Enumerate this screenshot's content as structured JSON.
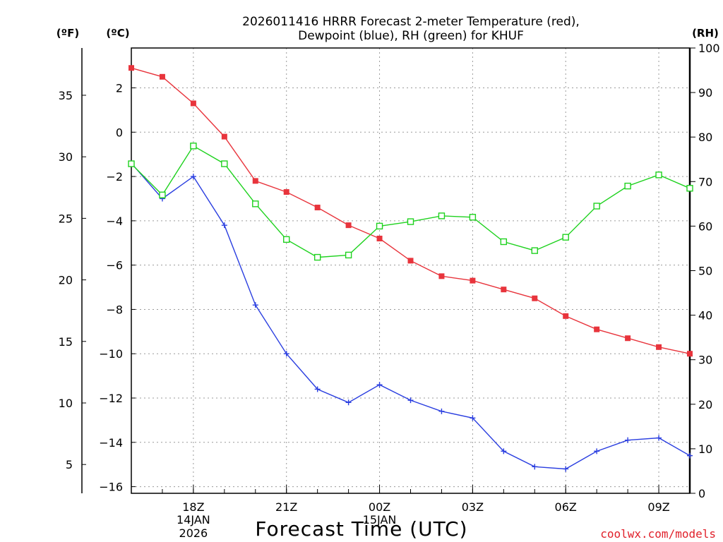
{
  "chart_data": {
    "type": "line",
    "title_line1": "2026011416 HRRR Forecast 2-meter Temperature (red),",
    "title_line2": "Dewpoint (blue), RH (green) for KHUF",
    "unit_f": "(ºF)",
    "unit_c": "(ºC)",
    "unit_rh": "(RH)",
    "xlabel": "Forecast Time (UTC)",
    "credit": "coolwx.com/models",
    "x_hours": [
      16,
      17,
      18,
      19,
      20,
      21,
      22,
      23,
      24,
      25,
      26,
      27,
      28,
      29,
      30,
      31,
      32,
      33,
      34
    ],
    "xlim": [
      16,
      34
    ],
    "x_ticks": [
      {
        "hour": 18,
        "label": "18Z",
        "sub1": "14JAN",
        "sub2": "2026"
      },
      {
        "hour": 21,
        "label": "21Z",
        "sub1": "",
        "sub2": ""
      },
      {
        "hour": 24,
        "label": "00Z",
        "sub1": "15JAN",
        "sub2": ""
      },
      {
        "hour": 27,
        "label": "03Z",
        "sub1": "",
        "sub2": ""
      },
      {
        "hour": 30,
        "label": "06Z",
        "sub1": "",
        "sub2": ""
      },
      {
        "hour": 33,
        "label": "09Z",
        "sub1": "",
        "sub2": ""
      }
    ],
    "c_axis": {
      "range": [
        -16.3,
        3.8
      ],
      "ticks": [
        2,
        0,
        -2,
        -4,
        -6,
        -8,
        -10,
        -12,
        -14,
        -16
      ],
      "labels": [
        "2",
        "0",
        "−2",
        "−4",
        "−6",
        "−8",
        "−10",
        "−12",
        "−14",
        "−16"
      ]
    },
    "f_axis": {
      "ticks": [
        35,
        30,
        25,
        20,
        15,
        10,
        5
      ],
      "labels": [
        "35",
        "30",
        "25",
        "20",
        "15",
        "10",
        "5"
      ]
    },
    "rh_axis": {
      "range": [
        0,
        100
      ],
      "ticks": [
        100,
        90,
        80,
        70,
        60,
        50,
        40,
        30,
        20,
        10,
        0
      ],
      "labels": [
        "100",
        "90",
        "80",
        "70",
        "60",
        "50",
        "40",
        "30",
        "20",
        "10",
        "0"
      ]
    },
    "series": [
      {
        "name": "2-meter Temperature",
        "unit": "C",
        "color": "#e8343c",
        "marker": "square-filled",
        "values": [
          2.9,
          2.5,
          1.3,
          -0.2,
          -2.2,
          -2.7,
          -3.4,
          -4.2,
          -4.8,
          -5.8,
          -6.5,
          -6.7,
          -7.1,
          -7.5,
          -8.3,
          -8.9,
          -9.3,
          -9.7,
          -10.0
        ]
      },
      {
        "name": "Dewpoint",
        "unit": "C",
        "color": "#2a3ee0",
        "marker": "plus",
        "values": [
          -1.4,
          -3.0,
          -2.0,
          -4.2,
          -7.8,
          -10.0,
          -11.6,
          -12.2,
          -11.4,
          -12.1,
          -12.6,
          -12.9,
          -14.4,
          -15.1,
          -15.2,
          -14.4,
          -13.9,
          -13.8,
          -14.6
        ]
      },
      {
        "name": "RH",
        "unit": "%",
        "color": "#1fd21f",
        "marker": "square-open",
        "values": [
          74,
          67,
          78,
          74,
          65,
          57,
          53,
          53.5,
          60,
          61,
          62.3,
          62,
          56.5,
          54.5,
          57.5,
          64.5,
          69,
          71.5,
          68.5
        ]
      }
    ]
  }
}
